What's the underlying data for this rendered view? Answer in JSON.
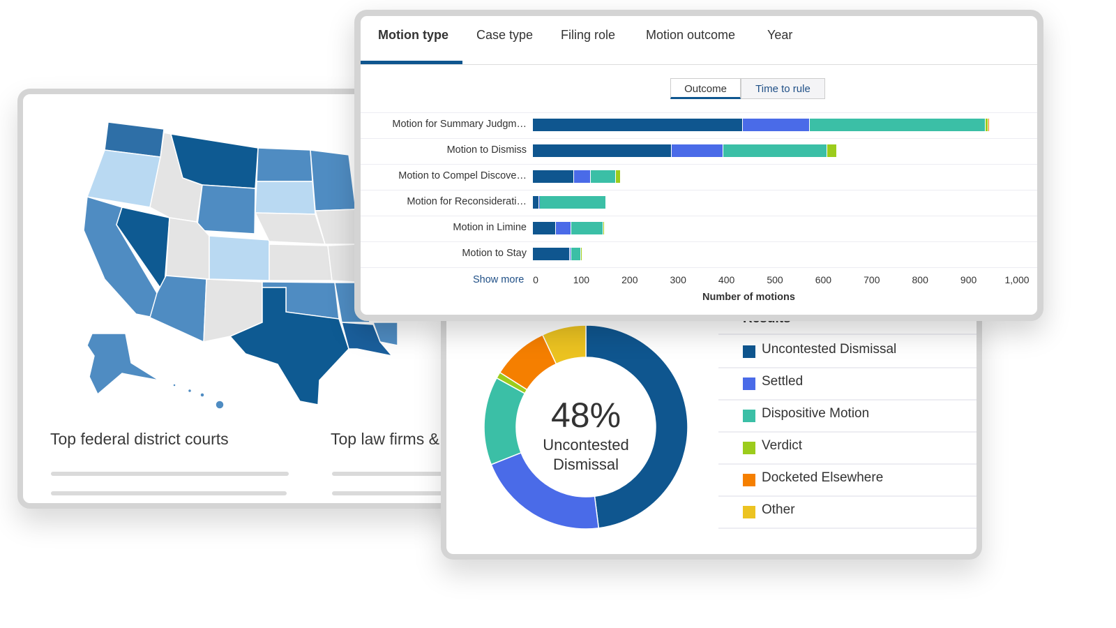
{
  "map_card": {
    "sections": [
      "Top federal district courts",
      "Top law firms &"
    ],
    "colors": {
      "darkest": "#0e5a92",
      "dark": "#2e6fa7",
      "mid": "#4f8cc2",
      "light": "#b9d9f2",
      "none": "#e4e4e4"
    }
  },
  "bar_card": {
    "tabs": [
      {
        "label": "Motion type",
        "active": true
      },
      {
        "label": "Case type",
        "active": false
      },
      {
        "label": "Filing role",
        "active": false
      },
      {
        "label": "Motion outcome",
        "active": false
      },
      {
        "label": "Year",
        "active": false
      }
    ],
    "toggle": [
      {
        "label": "Outcome",
        "active": true
      },
      {
        "label": "Time to rule",
        "active": false
      }
    ],
    "show_more": "Show more"
  },
  "chart_data": [
    {
      "type": "bar",
      "orientation": "horizontal",
      "stacked": true,
      "categories": [
        "Motion for Summary Judgm…",
        "Motion to Dismiss",
        "Motion to Compel Discove…",
        "Motion for Reconsiderati…",
        "Motion in Limine",
        "Motion to Stay"
      ],
      "series": [
        {
          "name": "Uncontested Dismissal",
          "color": "#0f568f",
          "values": [
            434,
            287,
            85,
            13,
            48,
            77
          ]
        },
        {
          "name": "Settled",
          "color": "#4a6be8",
          "values": [
            138,
            106,
            35,
            2,
            31,
            2
          ]
        },
        {
          "name": "Dispositive Motion",
          "color": "#3bbfa6",
          "values": [
            363,
            215,
            51,
            136,
            67,
            20
          ]
        },
        {
          "name": "Verdict",
          "color": "#9ccc1c",
          "values": [
            6,
            20,
            11,
            0,
            2,
            4
          ]
        },
        {
          "name": "Docketed Elsewhere",
          "color": "#f57f00",
          "values": [
            3,
            0,
            0,
            0,
            0,
            0
          ]
        }
      ],
      "xlabel": "Number of motions",
      "xlim": [
        0,
        1000
      ],
      "xticks": [
        "0",
        "100",
        "200",
        "300",
        "400",
        "500",
        "600",
        "700",
        "800",
        "900",
        "1,000"
      ],
      "grid": false
    },
    {
      "type": "pie",
      "donut": true,
      "center_value": "48%",
      "center_label": "Uncontested Dismissal",
      "legend_title": "Results",
      "legend_position": "right",
      "slices": [
        {
          "name": "Uncontested Dismissal",
          "value": 48,
          "color": "#0f568f"
        },
        {
          "name": "Settled",
          "value": 21,
          "color": "#4a6be8"
        },
        {
          "name": "Dispositive Motion",
          "value": 14,
          "color": "#3bbfa6"
        },
        {
          "name": "Verdict",
          "value": 1,
          "color": "#9ccc1c"
        },
        {
          "name": "Docketed Elsewhere",
          "value": 9,
          "color": "#f57f00"
        },
        {
          "name": "Other",
          "value": 7,
          "color": "#ecc321"
        }
      ]
    }
  ]
}
